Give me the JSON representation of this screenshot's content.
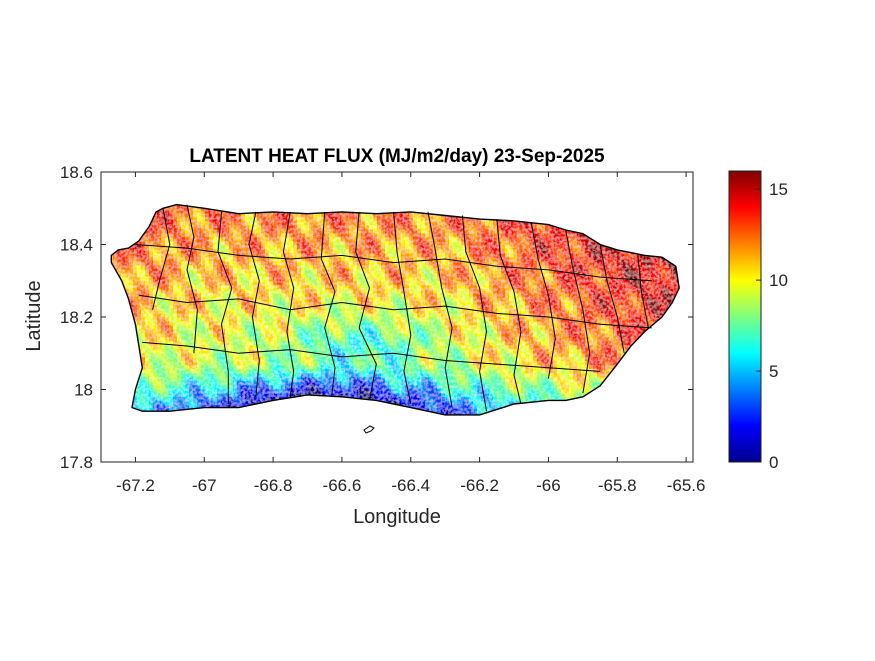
{
  "chart_data": {
    "type": "heatmap",
    "title": "LATENT HEAT FLUX (MJ/m2/day) 23-Sep-2025",
    "xlabel": "Longitude",
    "ylabel": "Latitude",
    "xlim": [
      -67.3,
      -65.58
    ],
    "ylim": [
      17.8,
      18.6
    ],
    "xticks": [
      -67.2,
      -67,
      -66.8,
      -66.6,
      -66.4,
      -66.2,
      -66,
      -65.8,
      -65.6
    ],
    "xtick_labels": [
      "-67.2",
      "-67",
      "-66.8",
      "-66.6",
      "-66.4",
      "-66.2",
      "-66",
      "-65.8",
      "-65.6"
    ],
    "yticks": [
      17.8,
      18,
      18.2,
      18.4,
      18.6
    ],
    "ytick_labels": [
      "17.8",
      "18",
      "18.2",
      "18.4",
      "18.6"
    ],
    "colorbar": {
      "colormap": "jet",
      "range": [
        0,
        16
      ],
      "ticks": [
        0,
        5,
        10,
        15
      ],
      "tick_labels": [
        "0",
        "5",
        "10",
        "15"
      ]
    },
    "grid": false,
    "summary_values": {
      "west_coast": 11,
      "north_coast": 13,
      "south_coast_central": 1.5,
      "south_coast_west": 4,
      "interior_central": 10,
      "east_northeast": 15.5
    }
  },
  "colors": {
    "outline": "#000000",
    "background": "#ffffff"
  }
}
